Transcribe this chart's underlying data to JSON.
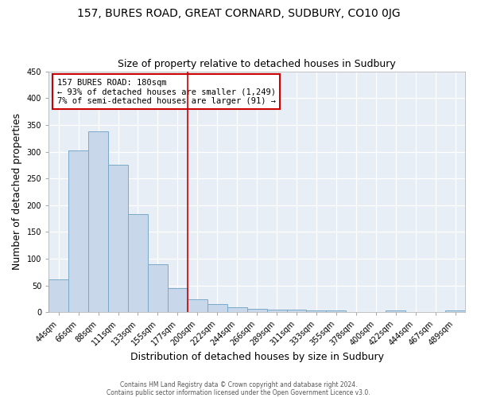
{
  "title": "157, BURES ROAD, GREAT CORNARD, SUDBURY, CO10 0JG",
  "subtitle": "Size of property relative to detached houses in Sudbury",
  "xlabel": "Distribution of detached houses by size in Sudbury",
  "ylabel": "Number of detached properties",
  "bar_labels": [
    "44sqm",
    "66sqm",
    "88sqm",
    "111sqm",
    "133sqm",
    "155sqm",
    "177sqm",
    "200sqm",
    "222sqm",
    "244sqm",
    "266sqm",
    "289sqm",
    "311sqm",
    "333sqm",
    "355sqm",
    "378sqm",
    "400sqm",
    "422sqm",
    "444sqm",
    "467sqm",
    "489sqm"
  ],
  "bar_values": [
    62,
    302,
    338,
    275,
    184,
    90,
    45,
    24,
    15,
    10,
    6,
    5,
    5,
    4,
    3,
    1,
    0,
    3,
    1,
    0,
    3
  ],
  "bar_color": "#c8d8ea",
  "bar_edgecolor": "#7aaac8",
  "vline_x_idx": 6,
  "vline_color": "#cc0000",
  "ylim": [
    0,
    450
  ],
  "yticks": [
    0,
    50,
    100,
    150,
    200,
    250,
    300,
    350,
    400,
    450
  ],
  "annotation_title": "157 BURES ROAD: 180sqm",
  "annotation_line1": "← 93% of detached houses are smaller (1,249)",
  "annotation_line2": "7% of semi-detached houses are larger (91) →",
  "annotation_box_facecolor": "#ffffff",
  "annotation_box_edgecolor": "#cc0000",
  "footer1": "Contains HM Land Registry data © Crown copyright and database right 2024.",
  "footer2": "Contains public sector information licensed under the Open Government Licence v3.0.",
  "fig_bg_color": "#ffffff",
  "plot_bg_color": "#e8eef5",
  "grid_color": "#ffffff",
  "title_fontsize": 10,
  "subtitle_fontsize": 9,
  "ylabel_fontsize": 9,
  "xlabel_fontsize": 9
}
